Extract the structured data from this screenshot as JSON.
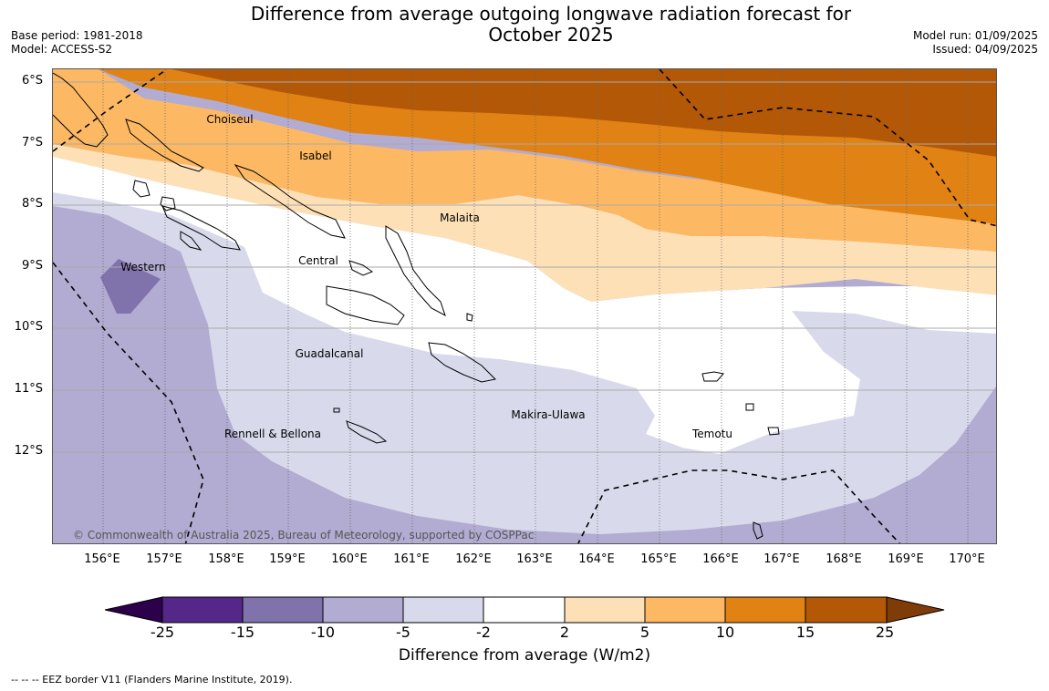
{
  "title_line1": "Difference from average outgoing longwave radiation forecast for",
  "title_line2": "October 2025",
  "base_period": "Base period: 1981-2018",
  "model": "Model: ACCESS-S2",
  "model_run": "Model run: 01/09/2025",
  "issued": "Issued: 04/09/2025",
  "lat_labels": [
    "6°S",
    "7°S",
    "8°S",
    "9°S",
    "10°S",
    "11°S",
    "12°S"
  ],
  "lon_labels": [
    "156°E",
    "157°E",
    "158°E",
    "159°E",
    "160°E",
    "161°E",
    "162°E",
    "163°E",
    "164°E",
    "165°E",
    "166°E",
    "167°E",
    "168°E",
    "169°E",
    "170°E"
  ],
  "places": [
    "Choiseul",
    "Isabel",
    "Malaita",
    "Western",
    "Central",
    "Guadalcanal",
    "Makira-Ulawa",
    "Temotu",
    "Rennell & Bellona"
  ],
  "copyright": "© Commonwealth of Australia 2025, Bureau of Meteorology, supported by COSPPac",
  "colorbar": {
    "ticks": [
      "-25",
      "-15",
      "-10",
      "-5",
      "-2",
      "2",
      "5",
      "10",
      "15",
      "25"
    ],
    "colors": [
      "#542788",
      "#8073ac",
      "#b2abd2",
      "#d8daeb",
      "#ffffff",
      "#fee0b6",
      "#fdb863",
      "#e08214",
      "#b35806"
    ],
    "under_color": "#2d004b",
    "over_color": "#7f3b08",
    "label": "Difference from average (W/m2)"
  },
  "footer": "--  --  -- EEZ border V11 (Flanders Marine Institute, 2019)."
}
